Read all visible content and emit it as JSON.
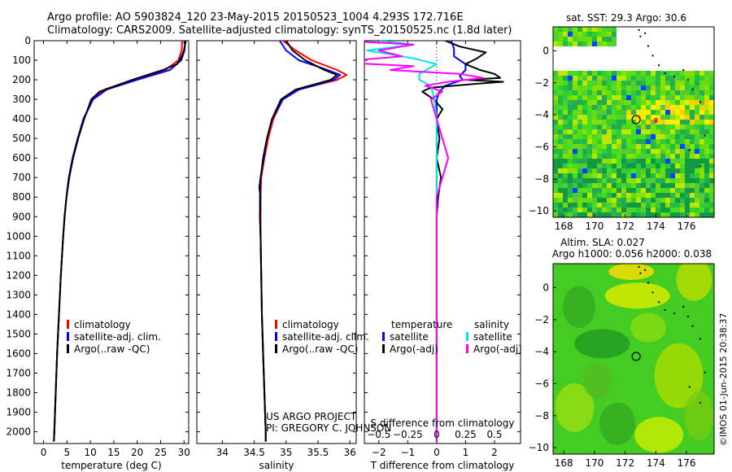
{
  "header": {
    "line1": "Argo profile: AO 5903824_120 23-May-2015 20150523_1004 4.293S 172.716E",
    "line2": "Climatology: CARS2009. Satellite-adjusted climatology: synTS_20150525.nc (1.8d later)"
  },
  "credit": {
    "project": "US ARGO PROJECT",
    "pi": "PI: GREGORY C. JOHNSON"
  },
  "watermark": "©IMOS 01-Jun-2015 20:38:37",
  "colors": {
    "climatology": "#ff0000",
    "satellite": "#0000ff",
    "argo": "#000000",
    "sal_satellite": "#00e5e5",
    "sal_argo": "#ff00ff"
  },
  "chart_data": [
    {
      "type": "line",
      "xlabel": "temperature (deg C)",
      "xlim": [
        -2,
        31
      ],
      "xticks": [
        0,
        5,
        10,
        15,
        20,
        25,
        30
      ],
      "ylim": [
        2060,
        0
      ],
      "yticks": [
        0,
        100,
        200,
        300,
        400,
        500,
        600,
        700,
        800,
        900,
        1000,
        1100,
        1200,
        1300,
        1400,
        1500,
        1600,
        1700,
        1800,
        1900,
        2000
      ],
      "legend": [
        "climatology",
        "satellite-adj. clim.",
        "Argo(..raw -QC)"
      ],
      "series": [
        {
          "name": "climatology",
          "color": "#ff0000",
          "depth": [
            0,
            50,
            100,
            150,
            200,
            250,
            300,
            400,
            500,
            600,
            700,
            800,
            900,
            1000,
            1200,
            1400,
            1600,
            1800,
            2000,
            2050
          ],
          "values": [
            29.6,
            29.5,
            28.8,
            26,
            19,
            13,
            10.5,
            8.6,
            7.4,
            6.3,
            5.4,
            4.9,
            4.5,
            4.2,
            3.7,
            3.3,
            2.9,
            2.6,
            2.3,
            2.2
          ]
        },
        {
          "name": "satellite-adj. clim.",
          "color": "#0000ff",
          "depth": [
            0,
            50,
            100,
            150,
            200,
            250,
            300,
            400,
            500,
            600,
            700,
            800,
            900,
            1000,
            1200,
            1400,
            1600,
            1800,
            2000,
            2050
          ],
          "values": [
            30.3,
            30.1,
            29.4,
            27,
            20,
            13.5,
            10.6,
            8.5,
            7.3,
            6.2,
            5.4,
            4.9,
            4.5,
            4.2,
            3.7,
            3.3,
            2.9,
            2.6,
            2.3,
            2.2
          ]
        },
        {
          "name": "Argo(..raw -QC)",
          "color": "#000000",
          "depth": [
            0,
            20,
            50,
            80,
            120,
            150,
            180,
            200,
            230,
            260,
            300,
            400,
            500,
            600,
            700,
            800,
            900,
            1000,
            1200,
            1400,
            1600,
            1800,
            2000,
            2050
          ],
          "values": [
            30.4,
            30.2,
            30.0,
            29.5,
            28.5,
            25.5,
            21.5,
            19,
            15.5,
            12,
            10.2,
            8.7,
            7.4,
            6.3,
            5.5,
            4.9,
            4.5,
            4.2,
            3.7,
            3.3,
            2.9,
            2.6,
            2.3,
            2.2
          ]
        }
      ]
    },
    {
      "type": "line",
      "xlabel": "salinity",
      "xlim": [
        33.6,
        36.1
      ],
      "xticks": [
        34,
        34.5,
        35,
        35.5,
        36
      ],
      "ylim": [
        2060,
        0
      ],
      "legend": [
        "climatology",
        "satellite-adj. clim.",
        "Argo(..raw -QC)"
      ],
      "series": [
        {
          "name": "climatology",
          "color": "#ff0000",
          "depth": [
            0,
            50,
            100,
            150,
            175,
            200,
            250,
            300,
            400,
            500,
            600,
            700,
            800,
            900,
            1000,
            1200,
            1400,
            1600,
            1800,
            2000,
            2050
          ],
          "values": [
            34.95,
            35.15,
            35.4,
            35.8,
            35.95,
            35.8,
            35.2,
            34.95,
            34.8,
            34.72,
            34.66,
            34.61,
            34.6,
            34.6,
            34.6,
            34.61,
            34.62,
            34.64,
            34.66,
            34.68,
            34.68
          ]
        },
        {
          "name": "satellite-adj. clim.",
          "color": "#0000ff",
          "depth": [
            0,
            50,
            100,
            150,
            175,
            200,
            250,
            300,
            400,
            500,
            600,
            700,
            800,
            900,
            1000,
            1200,
            1400,
            1600,
            1800,
            2000,
            2050
          ],
          "values": [
            34.9,
            35.0,
            35.2,
            35.65,
            35.85,
            35.75,
            35.2,
            34.95,
            34.78,
            34.7,
            34.65,
            34.6,
            34.59,
            34.59,
            34.6,
            34.61,
            34.62,
            34.64,
            34.66,
            34.68,
            34.68
          ]
        },
        {
          "name": "Argo(..raw -QC)",
          "color": "#000000",
          "depth": [
            0,
            50,
            100,
            150,
            175,
            200,
            250,
            300,
            400,
            500,
            600,
            700,
            750,
            800,
            900,
            1000,
            1200,
            1400,
            1600,
            1800,
            2000,
            2050
          ],
          "values": [
            35.0,
            35.1,
            35.3,
            35.6,
            35.8,
            35.7,
            35.15,
            34.92,
            34.78,
            34.7,
            34.64,
            34.6,
            34.58,
            34.6,
            34.59,
            34.6,
            34.61,
            34.62,
            34.64,
            34.66,
            34.68,
            34.68
          ]
        }
      ]
    },
    {
      "type": "line",
      "xlabel": "T difference from climatology",
      "xlabel_top": "S difference from climatology",
      "xlim": [
        -2.5,
        2.9
      ],
      "xticks": [
        -2,
        -1,
        0,
        1,
        2
      ],
      "xticks_top": [
        -0.5,
        -0.25,
        0,
        0.25,
        0.5
      ],
      "xticks_top_labels": [
        "-0.5",
        "-0.25",
        "0",
        "0.25",
        "0.5"
      ],
      "ylim": [
        2060,
        0
      ],
      "legend_temperature": [
        "temperature",
        "satellite",
        "Argo(-adj)"
      ],
      "legend_salinity": [
        "salinity",
        "satellite",
        "Argo(-adj)"
      ],
      "series": [
        {
          "name": "satellite",
          "color": "#0000ff",
          "depth": [
            0,
            40,
            80,
            120,
            150,
            180,
            200,
            230,
            260,
            300,
            400,
            600,
            800,
            1000,
            1500,
            2050
          ],
          "values": [
            0.5,
            0.6,
            0.6,
            1.0,
            1.0,
            0.8,
            0.9,
            0.3,
            0.1,
            0.0,
            0.0,
            0.0,
            0.0,
            0.0,
            0.0,
            0.0
          ]
        },
        {
          "name": "Argo(-adj)",
          "color": "#000000",
          "depth": [
            0,
            30,
            60,
            90,
            120,
            150,
            170,
            190,
            200,
            210,
            220,
            240,
            260,
            300,
            350,
            400,
            500,
            600,
            700,
            800,
            900,
            1000,
            1500,
            2050
          ],
          "values": [
            0.3,
            0.8,
            1.7,
            1.4,
            1.0,
            1.5,
            2.0,
            2.2,
            1.0,
            2.3,
            1.4,
            -0.2,
            -0.5,
            -0.1,
            0.2,
            0.0,
            0.1,
            0.0,
            0.15,
            0.05,
            0.0,
            0.0,
            0.0,
            0.0
          ]
        },
        {
          "name": "S satellite",
          "color": "#00e5e5",
          "depth": [
            0,
            20,
            50,
            90,
            120,
            170,
            200,
            230,
            300,
            400,
            600,
            1000,
            1500,
            2050
          ],
          "values": [
            -0.5,
            -0.2,
            -0.6,
            -0.2,
            0.0,
            -0.15,
            -0.15,
            -0.05,
            -0.02,
            0.0,
            0.0,
            0.0,
            0.0,
            0.0
          ]
        },
        {
          "name": "S Argo(-adj)",
          "color": "#ff00ff",
          "depth": [
            0,
            20,
            50,
            80,
            110,
            130,
            150,
            170,
            190,
            210,
            230,
            260,
            300,
            400,
            500,
            600,
            700,
            800,
            1000,
            1200,
            1500,
            2050
          ],
          "values": [
            -0.8,
            -0.2,
            -0.5,
            -0.3,
            -0.9,
            -0.2,
            -0.4,
            0.2,
            0.4,
            0.1,
            -0.1,
            0.05,
            -0.05,
            0.0,
            0.05,
            0.1,
            0.05,
            0.0,
            0.0,
            0.0,
            0.0,
            0.0
          ]
        }
      ]
    },
    {
      "type": "heatmap",
      "title": "sat. SST: 29.3 Argo: 30.6",
      "xlim": [
        167.3,
        177.8
      ],
      "ylim": [
        -10.4,
        1.5
      ],
      "xticks": [
        168,
        170,
        172,
        174,
        176
      ],
      "yticks": [
        0,
        -2,
        -4,
        -6,
        -8,
        -10
      ],
      "marker": {
        "lon": 172.716,
        "lat": -4.293
      }
    },
    {
      "type": "heatmap",
      "title": "Altim. SLA: 0.027",
      "subtitle": "Argo h1000: 0.056 h2000: 0.038",
      "xlim": [
        167.3,
        177.8
      ],
      "ylim": [
        -10.4,
        1.5
      ],
      "xticks": [
        168,
        170,
        172,
        174,
        176
      ],
      "yticks": [
        0,
        -2,
        -4,
        -6,
        -8,
        -10
      ],
      "marker": {
        "lon": 172.716,
        "lat": -4.293
      }
    }
  ]
}
